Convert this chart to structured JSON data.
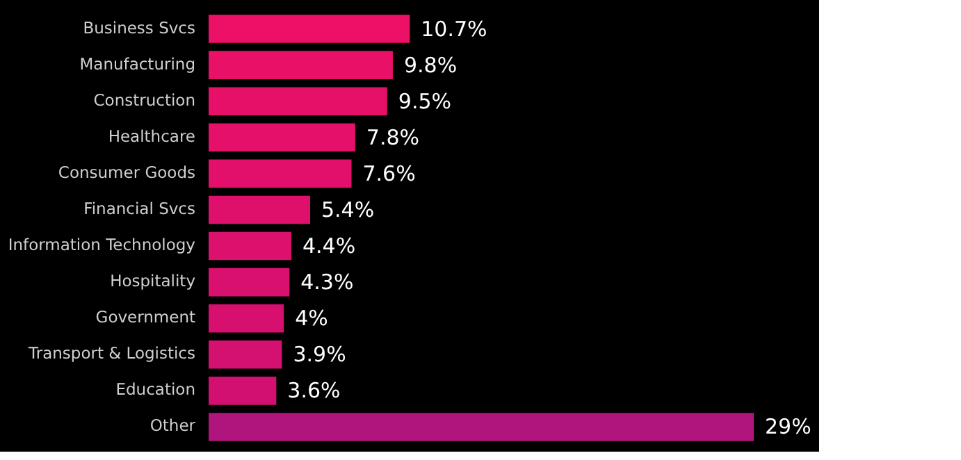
{
  "chart_data": {
    "type": "bar",
    "orientation": "horizontal",
    "categories": [
      "Business Svcs",
      "Manufacturing",
      "Construction",
      "Healthcare",
      "Consumer Goods",
      "Financial Svcs",
      "Information Technology",
      "Hospitality",
      "Government",
      "Transport & Logistics",
      "Education",
      "Other"
    ],
    "values": [
      10.7,
      9.8,
      9.5,
      7.8,
      7.6,
      5.4,
      4.4,
      4.3,
      4,
      3.9,
      3.6,
      29
    ],
    "value_labels": [
      "10.7%",
      "9.8%",
      "9.5%",
      "7.8%",
      "7.6%",
      "5.4%",
      "4.4%",
      "4.3%",
      "4%",
      "3.9%",
      "3.6%",
      "29%"
    ],
    "colors": [
      "#ec1066",
      "#e91068",
      "#e71068",
      "#e4106a",
      "#e2106b",
      "#df106c",
      "#dc106d",
      "#da106e",
      "#d7106f",
      "#d41070",
      "#d11072",
      "#b0157e"
    ],
    "xlim": [
      0,
      29
    ]
  }
}
